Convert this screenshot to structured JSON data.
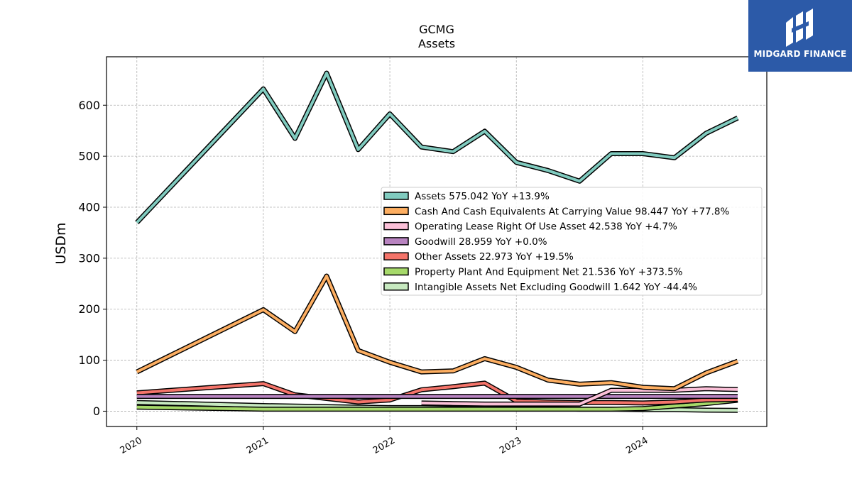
{
  "chart_data": {
    "type": "line",
    "title": "GCMG",
    "subtitle": "Assets",
    "ylabel": "USDm",
    "xlabel": "",
    "ylim": [
      -30,
      695
    ],
    "xlim": [
      2019.76,
      2024.98
    ],
    "yticks": [
      0,
      100,
      200,
      300,
      400,
      500,
      600
    ],
    "xticks": [
      "2020",
      "2021",
      "2022",
      "2023",
      "2024"
    ],
    "grid": true,
    "legend_position": "center-right",
    "series": [
      {
        "name": "Intangible Assets Net Excluding Goodwill",
        "legend": "Intangible Assets Net Excluding Goodwill  1.642 YoY -44.4%",
        "color": "#c7e9c0",
        "x": [
          2020.0,
          2021.0,
          2021.25,
          2021.5,
          2021.75,
          2022.0,
          2022.25,
          2022.5,
          2022.75,
          2023.0,
          2023.25,
          2023.5,
          2023.75,
          2024.0,
          2024.25,
          2024.5,
          2024.75
        ],
        "values": [
          17,
          11,
          10,
          9,
          8,
          7,
          7,
          6,
          6,
          5,
          5,
          4,
          4,
          3,
          3,
          2,
          1.6
        ]
      },
      {
        "name": "Property Plant And Equipment Net",
        "legend": "Property Plant And Equipment Net  21.536 YoY +373.5%",
        "color": "#a6d96a",
        "x": [
          2020.0,
          2021.0,
          2021.25,
          2021.5,
          2021.75,
          2022.0,
          2022.25,
          2022.5,
          2022.75,
          2023.0,
          2023.25,
          2023.5,
          2023.75,
          2024.0,
          2024.25,
          2024.5,
          2024.75
        ],
        "values": [
          8,
          4,
          4,
          4,
          4,
          4,
          4,
          4,
          4,
          4,
          4,
          4,
          4,
          5,
          10,
          15,
          21.5
        ]
      },
      {
        "name": "Other Assets",
        "legend": "Other Assets  22.973 YoY +19.5%",
        "color": "#f4746a",
        "x": [
          2020.0,
          2021.0,
          2021.25,
          2021.5,
          2021.75,
          2022.0,
          2022.25,
          2022.5,
          2022.75,
          2023.0,
          2023.25,
          2023.5,
          2023.75,
          2024.0,
          2024.25,
          2024.5,
          2024.75
        ],
        "values": [
          36,
          54,
          32,
          25,
          18,
          22,
          42,
          48,
          55,
          20,
          18,
          17,
          17,
          16,
          18,
          22,
          23
        ]
      },
      {
        "name": "Goodwill",
        "legend": "Goodwill  28.959 YoY +0.0%",
        "color": "#b883c0",
        "x": [
          2020.0,
          2021.0,
          2021.25,
          2021.5,
          2021.75,
          2022.0,
          2022.25,
          2022.5,
          2022.75,
          2023.0,
          2023.25,
          2023.5,
          2023.75,
          2024.0,
          2024.25,
          2024.5,
          2024.75
        ],
        "values": [
          29,
          29,
          29,
          29,
          29,
          29,
          29,
          29,
          29,
          29,
          29,
          29,
          29,
          29,
          29,
          29,
          29
        ]
      },
      {
        "name": "Operating Lease Right Of Use Asset",
        "legend": "Operating Lease Right Of Use Asset  42.538 YoY +4.7%",
        "color": "#fbc0d8",
        "x": [
          2022.25,
          2022.5,
          2022.75,
          2023.0,
          2023.25,
          2023.5,
          2023.75,
          2024.0,
          2024.25,
          2024.5,
          2024.75
        ],
        "values": [
          16,
          15,
          14,
          14,
          14,
          14,
          41,
          41,
          41,
          44,
          42.5
        ]
      },
      {
        "name": "Cash And Cash Equivalents At Carrying Value",
        "legend": "Cash And Cash Equivalents At Carrying Value  98.447 YoY +77.8%",
        "color": "#fdae61",
        "x": [
          2020.0,
          2021.0,
          2021.25,
          2021.5,
          2021.75,
          2022.0,
          2022.25,
          2022.5,
          2022.75,
          2023.0,
          2023.25,
          2023.5,
          2023.75,
          2024.0,
          2024.25,
          2024.5,
          2024.75
        ],
        "values": [
          77,
          199,
          156,
          265,
          119,
          96,
          77,
          79,
          103,
          86,
          61,
          53,
          56,
          47,
          44,
          75,
          98
        ]
      },
      {
        "name": "Assets",
        "legend": "Assets  575.042 YoY +13.9%",
        "color": "#80cbbf",
        "x": [
          2020.0,
          2021.0,
          2021.25,
          2021.5,
          2021.75,
          2022.0,
          2022.25,
          2022.5,
          2022.75,
          2023.0,
          2023.25,
          2023.5,
          2023.75,
          2024.0,
          2024.25,
          2024.5,
          2024.75
        ],
        "values": [
          370,
          632,
          535,
          663,
          513,
          583,
          518,
          509,
          549,
          488,
          472,
          451,
          505,
          505,
          497,
          545,
          575
        ]
      }
    ],
    "legend_order": [
      "Assets",
      "Cash And Cash Equivalents At Carrying Value",
      "Operating Lease Right Of Use Asset",
      "Goodwill",
      "Other Assets",
      "Property Plant And Equipment Net",
      "Intangible Assets Net Excluding Goodwill"
    ]
  },
  "logo": {
    "text": "MIDGARD FINANCE",
    "background": "#2c5aa8"
  }
}
